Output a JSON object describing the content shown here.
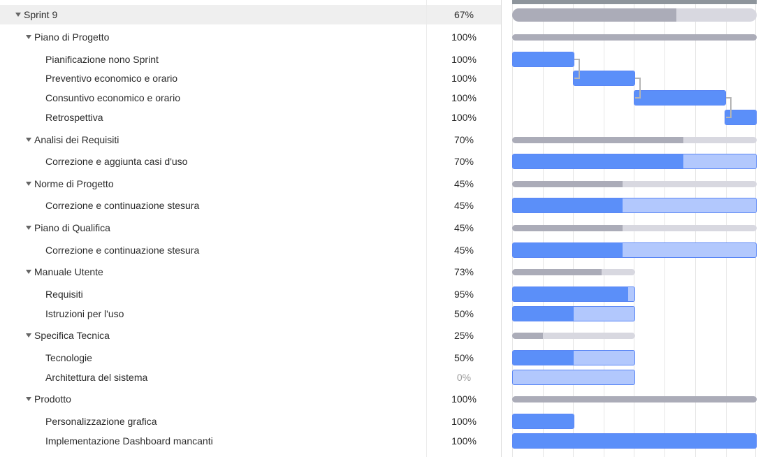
{
  "rows": [
    {
      "type": "group",
      "level": 0,
      "name": "Sprint 9",
      "progress": "67%",
      "selected": true
    },
    {
      "type": "group",
      "level": 1,
      "name": "Piano di Progetto",
      "progress": "100%"
    },
    {
      "type": "task",
      "level": 2,
      "name": "Pianificazione nono Sprint",
      "progress": "100%"
    },
    {
      "type": "task",
      "level": 2,
      "name": "Preventivo economico e orario",
      "progress": "100%"
    },
    {
      "type": "task",
      "level": 2,
      "name": "Consuntivo economico e orario",
      "progress": "100%"
    },
    {
      "type": "task",
      "level": 2,
      "name": "Retrospettiva",
      "progress": "100%"
    },
    {
      "type": "group",
      "level": 1,
      "name": "Analisi dei Requisiti",
      "progress": "70%"
    },
    {
      "type": "task",
      "level": 2,
      "name": "Correzione e aggiunta casi d'uso",
      "progress": "70%"
    },
    {
      "type": "group",
      "level": 1,
      "name": "Norme di Progetto",
      "progress": "45%"
    },
    {
      "type": "task",
      "level": 2,
      "name": "Correzione e continuazione stesura",
      "progress": "45%"
    },
    {
      "type": "group",
      "level": 1,
      "name": "Piano di Qualifica",
      "progress": "45%"
    },
    {
      "type": "task",
      "level": 2,
      "name": "Correzione e continuazione stesura",
      "progress": "45%"
    },
    {
      "type": "group",
      "level": 1,
      "name": "Manuale Utente",
      "progress": "73%"
    },
    {
      "type": "task",
      "level": 2,
      "name": "Requisiti",
      "progress": "95%"
    },
    {
      "type": "task",
      "level": 2,
      "name": "Istruzioni per l'uso",
      "progress": "50%"
    },
    {
      "type": "group",
      "level": 1,
      "name": "Specifica Tecnica",
      "progress": "25%"
    },
    {
      "type": "task",
      "level": 2,
      "name": "Tecnologie",
      "progress": "50%"
    },
    {
      "type": "task",
      "level": 2,
      "name": "Architettura del sistema",
      "progress": "0%"
    },
    {
      "type": "group",
      "level": 1,
      "name": "Prodotto",
      "progress": "100%"
    },
    {
      "type": "task",
      "level": 2,
      "name": "Personalizzazione grafica",
      "progress": "100%"
    },
    {
      "type": "task",
      "level": 2,
      "name": "Implementazione Dashboard mancanti",
      "progress": "100%"
    }
  ],
  "icons": {
    "expand": "caret-down-icon"
  },
  "colors": {
    "task_fill": "#5b8ff9",
    "task_remaining": "#b2c8fd",
    "summary_fill": "#abacb8",
    "summary_remaining": "#d8d8e0",
    "link": "#b5b5b5",
    "selected_row": "#efefef"
  }
}
